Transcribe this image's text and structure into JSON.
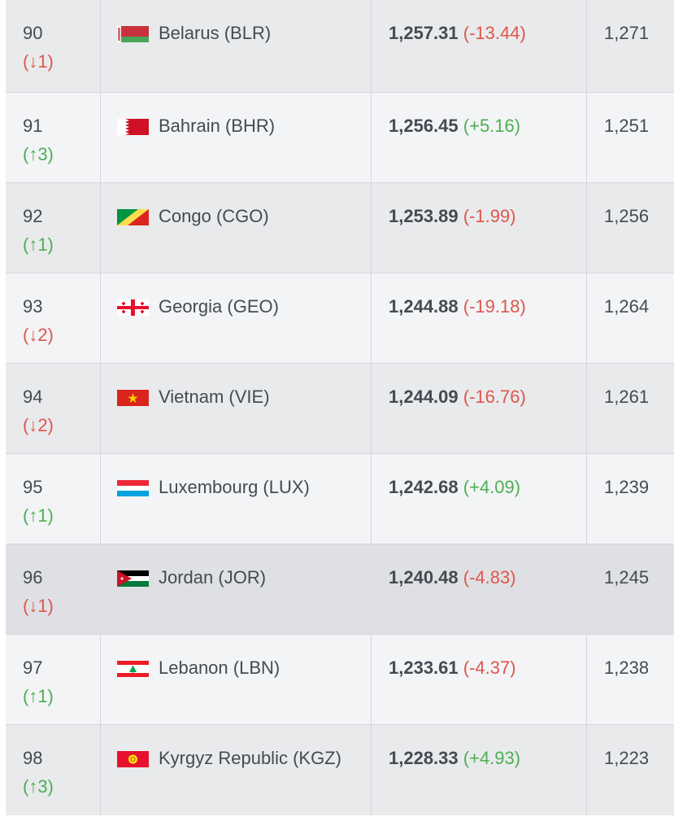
{
  "rows": [
    {
      "rank": "90",
      "move": "(↓1)",
      "dir": "down",
      "team": "Belarus (BLR)",
      "flag": "belarus-flag-icon",
      "points": "1,257.31",
      "change": "(-13.44)",
      "change_dir": "down",
      "previous": "1,271"
    },
    {
      "rank": "91",
      "move": "(↑3)",
      "dir": "up",
      "team": "Bahrain (BHR)",
      "flag": "bahrain-flag-icon",
      "points": "1,256.45",
      "change": "(+5.16)",
      "change_dir": "up",
      "previous": "1,251"
    },
    {
      "rank": "92",
      "move": "(↑1)",
      "dir": "up",
      "team": "Congo (CGO)",
      "flag": "congo-flag-icon",
      "points": "1,253.89",
      "change": "(-1.99)",
      "change_dir": "down",
      "previous": "1,256"
    },
    {
      "rank": "93",
      "move": "(↓2)",
      "dir": "down",
      "team": "Georgia (GEO)",
      "flag": "georgia-flag-icon",
      "points": "1,244.88",
      "change": "(-19.18)",
      "change_dir": "down",
      "previous": "1,264"
    },
    {
      "rank": "94",
      "move": "(↓2)",
      "dir": "down",
      "team": "Vietnam (VIE)",
      "flag": "vietnam-flag-icon",
      "points": "1,244.09",
      "change": "(-16.76)",
      "change_dir": "down",
      "previous": "1,261"
    },
    {
      "rank": "95",
      "move": "(↑1)",
      "dir": "up",
      "team": "Luxembourg (LUX)",
      "flag": "luxembourg-flag-icon",
      "points": "1,242.68",
      "change": "(+4.09)",
      "change_dir": "up",
      "previous": "1,239"
    },
    {
      "rank": "96",
      "move": "(↓1)",
      "dir": "down",
      "team": "Jordan (JOR)",
      "flag": "jordan-flag-icon",
      "points": "1,240.48",
      "change": "(-4.83)",
      "change_dir": "down",
      "previous": "1,245"
    },
    {
      "rank": "97",
      "move": "(↑1)",
      "dir": "up",
      "team": "Lebanon (LBN)",
      "flag": "lebanon-flag-icon",
      "points": "1,233.61",
      "change": "(-4.37)",
      "change_dir": "down",
      "previous": "1,238"
    },
    {
      "rank": "98",
      "move": "(↑3)",
      "dir": "up",
      "team": "Kyrgyz Republic (KGZ)",
      "flag": "kyrgyz-republic-flag-icon",
      "points": "1,228.33",
      "change": "(+4.93)",
      "change_dir": "up",
      "previous": "1,223"
    }
  ],
  "colors": {
    "up": "#4caf50",
    "down": "#e0554c",
    "text": "#454a52"
  }
}
